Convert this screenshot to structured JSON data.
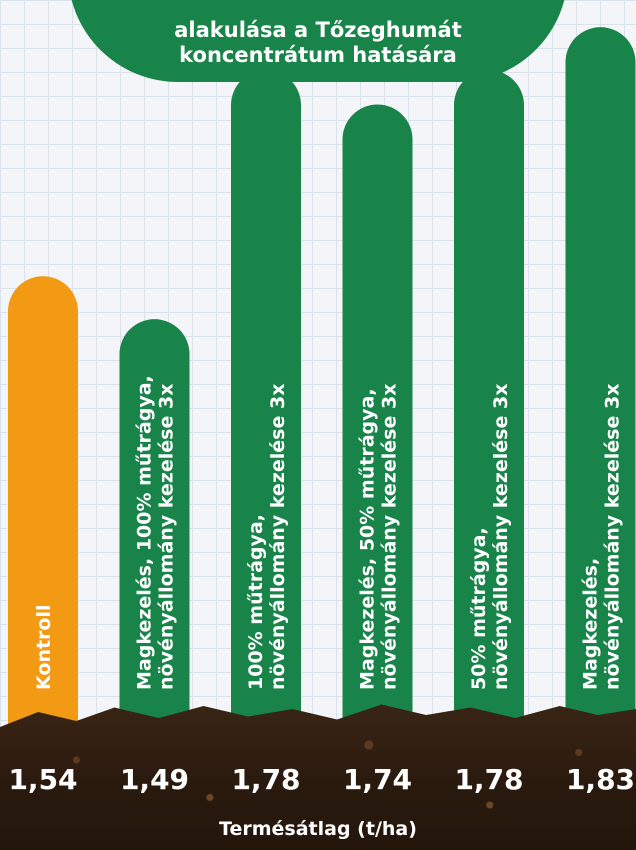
{
  "title_lines": [
    "alakulása a Tőzeghumát",
    "koncentrátum hatására"
  ],
  "chart_data": {
    "type": "bar",
    "categories": [
      [
        "Kontroll"
      ],
      [
        "Magkezelés, 100% műtrágya,",
        "növényállomány kezelése 3x"
      ],
      [
        "100% műtrágya,",
        "növényállomány kezelése 3x"
      ],
      [
        "Magkezelés, 50% műtrágya,",
        "növényállomány kezelése 3x"
      ],
      [
        "50% műtrágya,",
        "növényállomány kezelése 3x"
      ],
      [
        "Magkezelés,",
        "növényállomány kezelése 3x"
      ]
    ],
    "values": [
      1.54,
      1.49,
      1.78,
      1.74,
      1.78,
      1.83
    ],
    "value_labels": [
      "1,54",
      "1,49",
      "1,78",
      "1,74",
      "1,78",
      "1,83"
    ],
    "xlabel": "Termésátlag (t/ha)",
    "colors": [
      "#f39a14",
      "#198449",
      "#198449",
      "#198449",
      "#198449",
      "#198449"
    ],
    "ylim": [
      1.0,
      1.85
    ]
  }
}
